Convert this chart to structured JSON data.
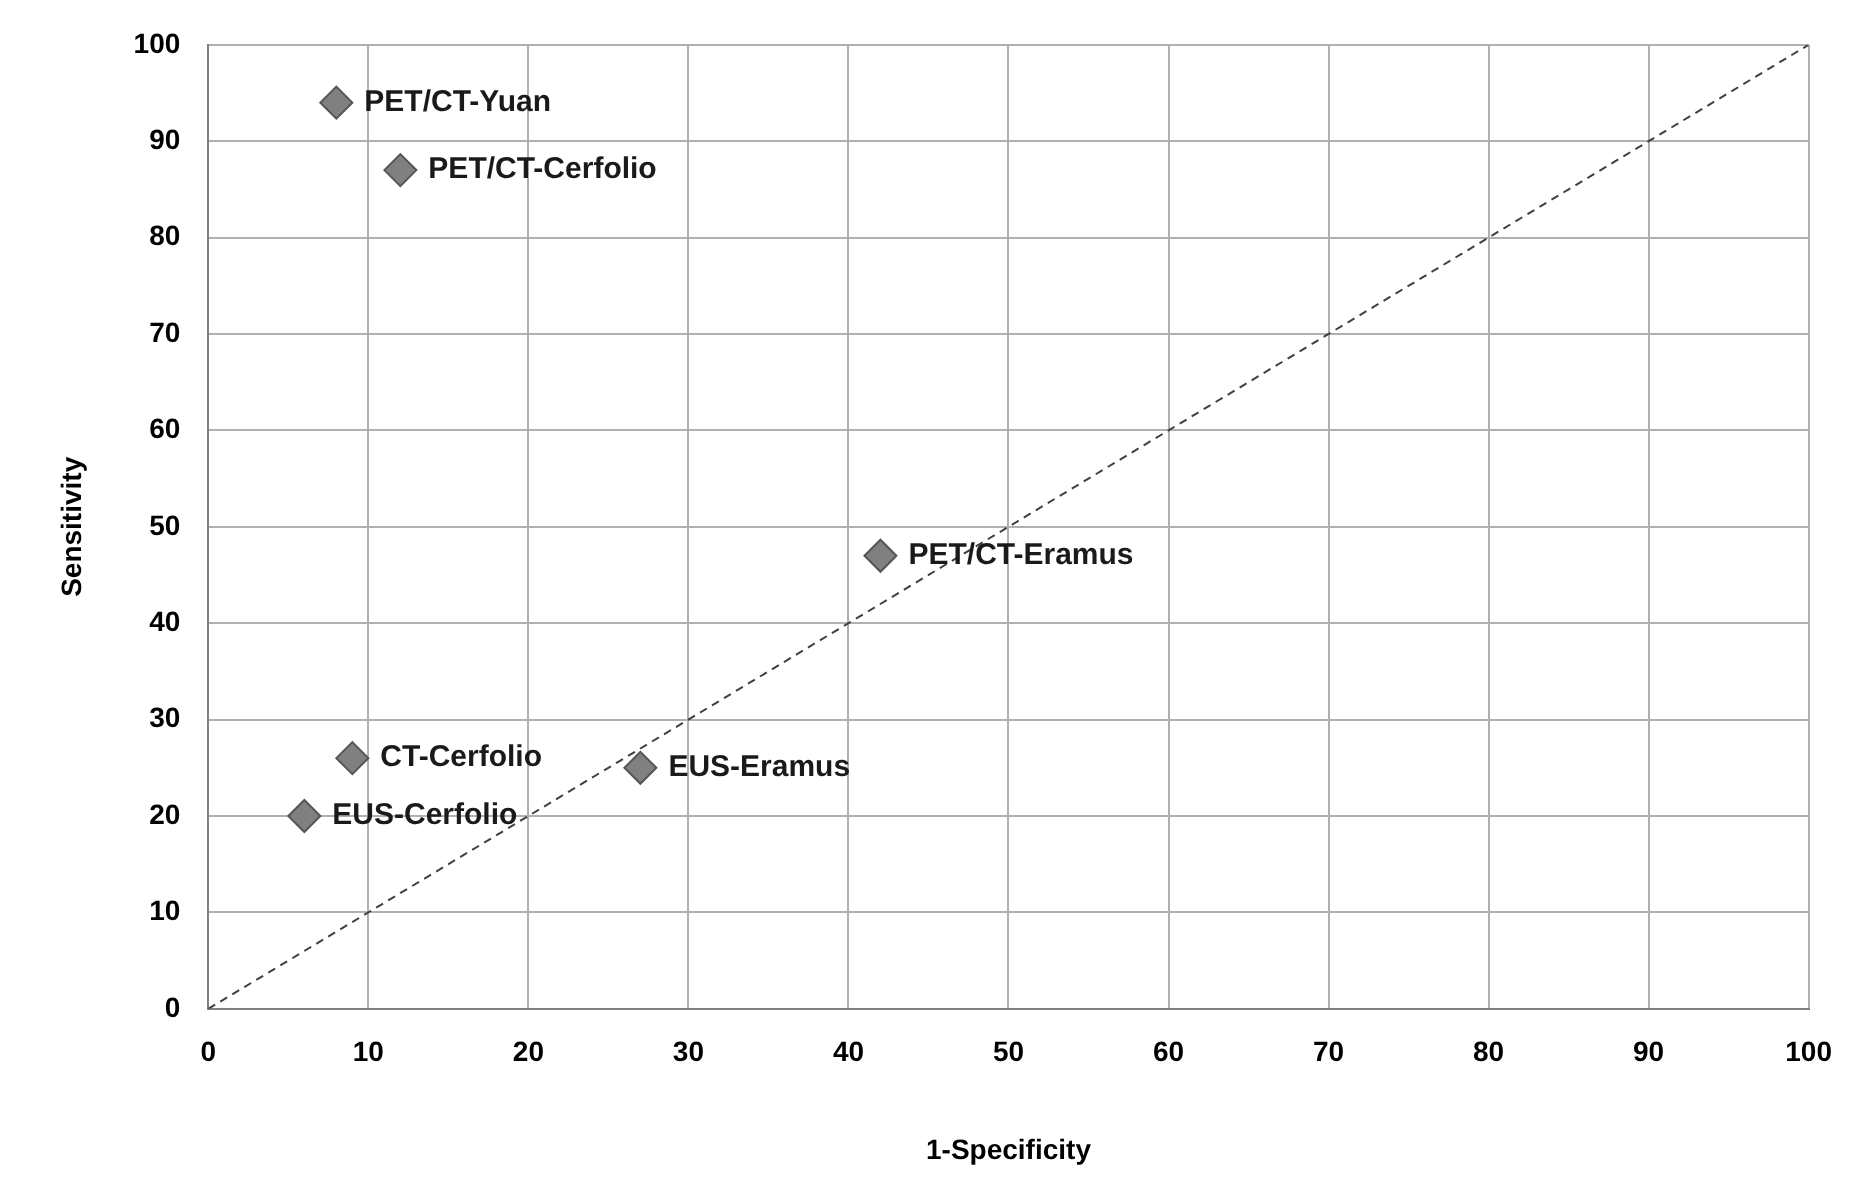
{
  "chart_data": {
    "type": "scatter",
    "xlabel": "1-Specificity",
    "ylabel": "Sensitivity",
    "xlim": [
      0,
      100
    ],
    "ylim": [
      0,
      100
    ],
    "xticks": [
      0,
      10,
      20,
      30,
      40,
      50,
      60,
      70,
      80,
      90,
      100
    ],
    "yticks": [
      0,
      10,
      20,
      30,
      40,
      50,
      60,
      70,
      80,
      90,
      100
    ],
    "grid": true,
    "legend": false,
    "marker": "diamond",
    "series": [
      {
        "color": "#808080",
        "x": [
          8,
          12,
          42,
          9,
          6,
          27
        ],
        "values": [
          94,
          87,
          47,
          26,
          20,
          25
        ]
      },
      {
        "type": "line",
        "color": "#404040",
        "line_style": "dashed",
        "marker": "none",
        "x": [
          0,
          100
        ],
        "values": [
          0,
          100
        ]
      }
    ],
    "annotations": [
      {
        "text": "PET/CT-Yuan",
        "x": 8,
        "y": 94
      },
      {
        "text": "PET/CT-Cerfolio",
        "x": 12,
        "y": 87
      },
      {
        "text": "PET/CT-Eramus",
        "x": 42,
        "y": 47
      },
      {
        "text": "CT-Cerfolio",
        "x": 9,
        "y": 26
      },
      {
        "text": "EUS-Cerfolio",
        "x": 6,
        "y": 20
      },
      {
        "text": "EUS-Eramus",
        "x": 27,
        "y": 25
      }
    ]
  }
}
